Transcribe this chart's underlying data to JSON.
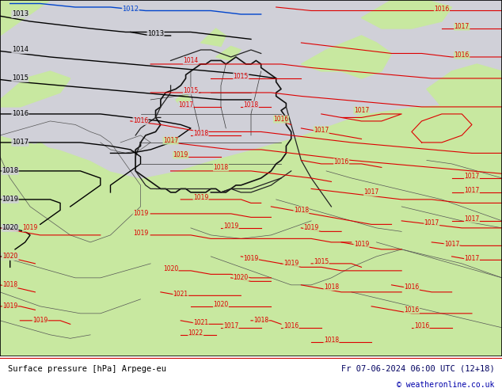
{
  "title_left": "Surface pressure [hPa] Arpege-eu",
  "title_right": "Fr 07-06-2024 06:00 UTC (12+18)",
  "copyright": "© weatheronline.co.uk",
  "sea_color": "#d0d0d8",
  "land_color": "#c8e8a0",
  "land_color2": "#b8e090",
  "footer_bg": "#ffffff",
  "text_color_left": "#000000",
  "text_color_right": "#000060",
  "text_color_copyright": "#0000aa",
  "fig_width": 6.34,
  "fig_height": 4.9,
  "dpi": 100,
  "black_line_color": "#000000",
  "red_line_color": "#dd0000",
  "blue_line_color": "#0044cc",
  "border_color": "#555555",
  "thick_border_color": "#111111"
}
